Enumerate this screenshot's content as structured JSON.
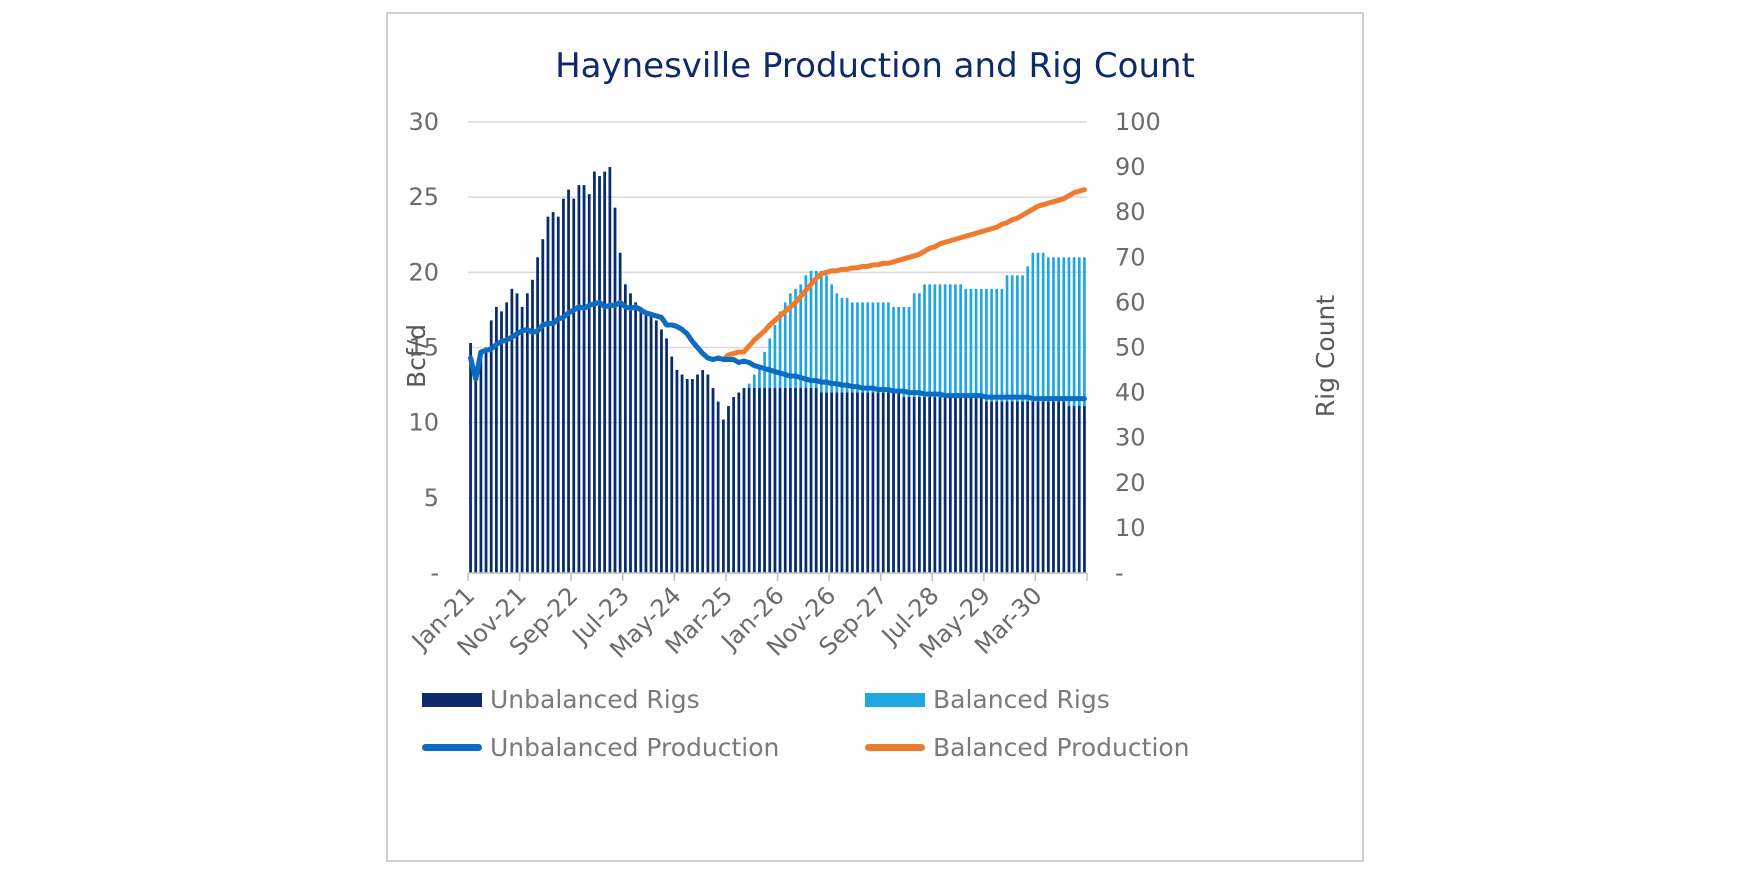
{
  "chart_data": {
    "type": "bar",
    "title": "Haynesville Production and Rig Count",
    "ylabel": "Bcf/d",
    "y2label": "Rig Count",
    "ylim": [
      0,
      30
    ],
    "y2lim": [
      0,
      100
    ],
    "yticks": [
      "-",
      "5",
      "10",
      "15",
      "20",
      "25",
      "30"
    ],
    "y2ticks": [
      "-",
      "10",
      "20",
      "30",
      "40",
      "50",
      "60",
      "70",
      "80",
      "90",
      "100"
    ],
    "x_start": "Jan-21",
    "x_end": "Dec-30",
    "xtick_labels": [
      "Jan-21",
      "Nov-21",
      "Sep-22",
      "Jul-23",
      "May-24",
      "Mar-25",
      "Jan-26",
      "Nov-26",
      "Sep-27",
      "Jul-28",
      "May-29",
      "Mar-30"
    ],
    "grid": true,
    "legend_position": "bottom",
    "series": [
      {
        "name": "Unbalanced Rigs",
        "type": "bar",
        "axis": "right",
        "color": "#0d2b6b",
        "values": [
          51,
          44,
          48,
          50,
          56,
          59,
          58,
          60,
          63,
          62,
          59,
          62,
          65,
          70,
          74,
          79,
          80,
          79,
          83,
          85,
          83,
          86,
          86,
          84,
          89,
          88,
          89,
          90,
          81,
          71,
          64,
          62,
          60,
          59,
          58,
          57,
          56,
          54,
          52,
          48,
          45,
          44,
          43,
          43,
          44,
          45,
          44,
          41,
          38,
          34,
          37,
          39,
          40,
          41,
          41,
          41,
          41,
          41,
          41,
          41,
          41,
          41,
          41,
          41,
          41,
          41,
          41,
          41,
          40,
          40,
          40,
          40,
          40,
          40,
          40,
          40,
          40,
          40,
          40,
          40,
          40,
          40,
          40,
          40,
          39,
          39,
          39,
          39,
          39,
          39,
          39,
          39,
          39,
          39,
          39,
          39,
          39,
          39,
          39,
          39,
          38,
          38,
          38,
          38,
          38,
          38,
          38,
          38,
          38,
          38,
          38,
          38,
          38,
          38,
          38,
          38,
          37,
          37,
          37,
          37
        ]
      },
      {
        "name": "Balanced Rigs",
        "type": "bar",
        "axis": "right",
        "color": "#1ea7e1",
        "values": [
          51,
          44,
          48,
          50,
          56,
          59,
          58,
          60,
          63,
          62,
          59,
          62,
          65,
          70,
          74,
          79,
          80,
          79,
          83,
          85,
          83,
          86,
          86,
          84,
          89,
          88,
          89,
          90,
          81,
          71,
          64,
          62,
          60,
          59,
          58,
          57,
          56,
          54,
          52,
          48,
          45,
          44,
          43,
          43,
          44,
          45,
          44,
          41,
          38,
          34,
          37,
          39,
          40,
          41,
          42,
          44,
          46,
          49,
          52,
          55,
          58,
          60,
          62,
          63,
          64,
          66,
          67,
          67,
          67,
          66,
          64,
          62,
          61,
          61,
          60,
          60,
          60,
          60,
          60,
          60,
          60,
          60,
          59,
          59,
          59,
          59,
          62,
          62,
          64,
          64,
          64,
          64,
          64,
          64,
          64,
          64,
          63,
          63,
          63,
          63,
          63,
          63,
          63,
          63,
          66,
          66,
          66,
          66,
          68,
          71,
          71,
          71,
          70,
          70,
          70,
          70,
          70,
          70,
          70,
          70
        ]
      },
      {
        "name": "Unbalanced Production",
        "type": "line",
        "axis": "left",
        "color": "#0a6cc2",
        "values": [
          14.3,
          12.9,
          14.7,
          14.8,
          14.9,
          15.2,
          15.4,
          15.5,
          15.7,
          15.9,
          16.1,
          16.2,
          16.0,
          16.1,
          16.5,
          16.6,
          16.6,
          16.9,
          17.0,
          17.3,
          17.5,
          17.7,
          17.6,
          17.8,
          17.9,
          18.0,
          17.7,
          17.8,
          17.8,
          18.0,
          17.7,
          17.6,
          17.7,
          17.5,
          17.3,
          17.2,
          17.1,
          17.0,
          16.5,
          16.5,
          16.4,
          16.2,
          15.9,
          15.4,
          15.0,
          14.6,
          14.3,
          14.2,
          14.3,
          14.2,
          14.2,
          14.2,
          14.0,
          14.1,
          14.0,
          13.8,
          13.7,
          13.6,
          13.5,
          13.4,
          13.3,
          13.2,
          13.1,
          13.1,
          13.0,
          12.9,
          12.8,
          12.8,
          12.7,
          12.7,
          12.6,
          12.6,
          12.5,
          12.5,
          12.4,
          12.4,
          12.3,
          12.3,
          12.3,
          12.2,
          12.2,
          12.2,
          12.1,
          12.1,
          12.1,
          12.0,
          12.0,
          12.0,
          11.9,
          11.9,
          11.9,
          11.9,
          11.8,
          11.8,
          11.8,
          11.8,
          11.8,
          11.8,
          11.8,
          11.8,
          11.7,
          11.7,
          11.7,
          11.7,
          11.7,
          11.7,
          11.7,
          11.7,
          11.7,
          11.6,
          11.6,
          11.6,
          11.6,
          11.6,
          11.6,
          11.6,
          11.6,
          11.6,
          11.6,
          11.6
        ]
      },
      {
        "name": "Balanced Production",
        "type": "line",
        "axis": "left",
        "color": "#ef7b2f",
        "values": [
          14.3,
          12.9,
          14.7,
          14.8,
          14.9,
          15.2,
          15.4,
          15.5,
          15.7,
          15.9,
          16.1,
          16.2,
          16.0,
          16.1,
          16.5,
          16.6,
          16.6,
          16.9,
          17.0,
          17.3,
          17.5,
          17.7,
          17.6,
          17.8,
          17.9,
          18.0,
          17.7,
          17.8,
          17.8,
          18.0,
          17.7,
          17.6,
          17.7,
          17.5,
          17.3,
          17.2,
          17.1,
          17.0,
          16.5,
          16.5,
          16.4,
          16.2,
          15.9,
          15.4,
          15.0,
          14.6,
          14.3,
          14.2,
          14.3,
          14.2,
          14.5,
          14.6,
          14.7,
          14.7,
          15.1,
          15.5,
          15.8,
          16.1,
          16.5,
          16.8,
          17.1,
          17.4,
          17.7,
          18.0,
          18.4,
          18.8,
          19.2,
          19.6,
          19.9,
          20.0,
          20.1,
          20.1,
          20.2,
          20.2,
          20.3,
          20.3,
          20.4,
          20.4,
          20.5,
          20.5,
          20.6,
          20.6,
          20.7,
          20.8,
          20.9,
          21.0,
          21.1,
          21.2,
          21.4,
          21.6,
          21.7,
          21.9,
          22.0,
          22.1,
          22.2,
          22.3,
          22.4,
          22.5,
          22.6,
          22.7,
          22.8,
          22.9,
          23.0,
          23.2,
          23.3,
          23.5,
          23.6,
          23.8,
          24.0,
          24.2,
          24.4,
          24.5,
          24.6,
          24.7,
          24.8,
          24.9,
          25.1,
          25.3,
          25.4,
          25.5
        ]
      }
    ]
  }
}
